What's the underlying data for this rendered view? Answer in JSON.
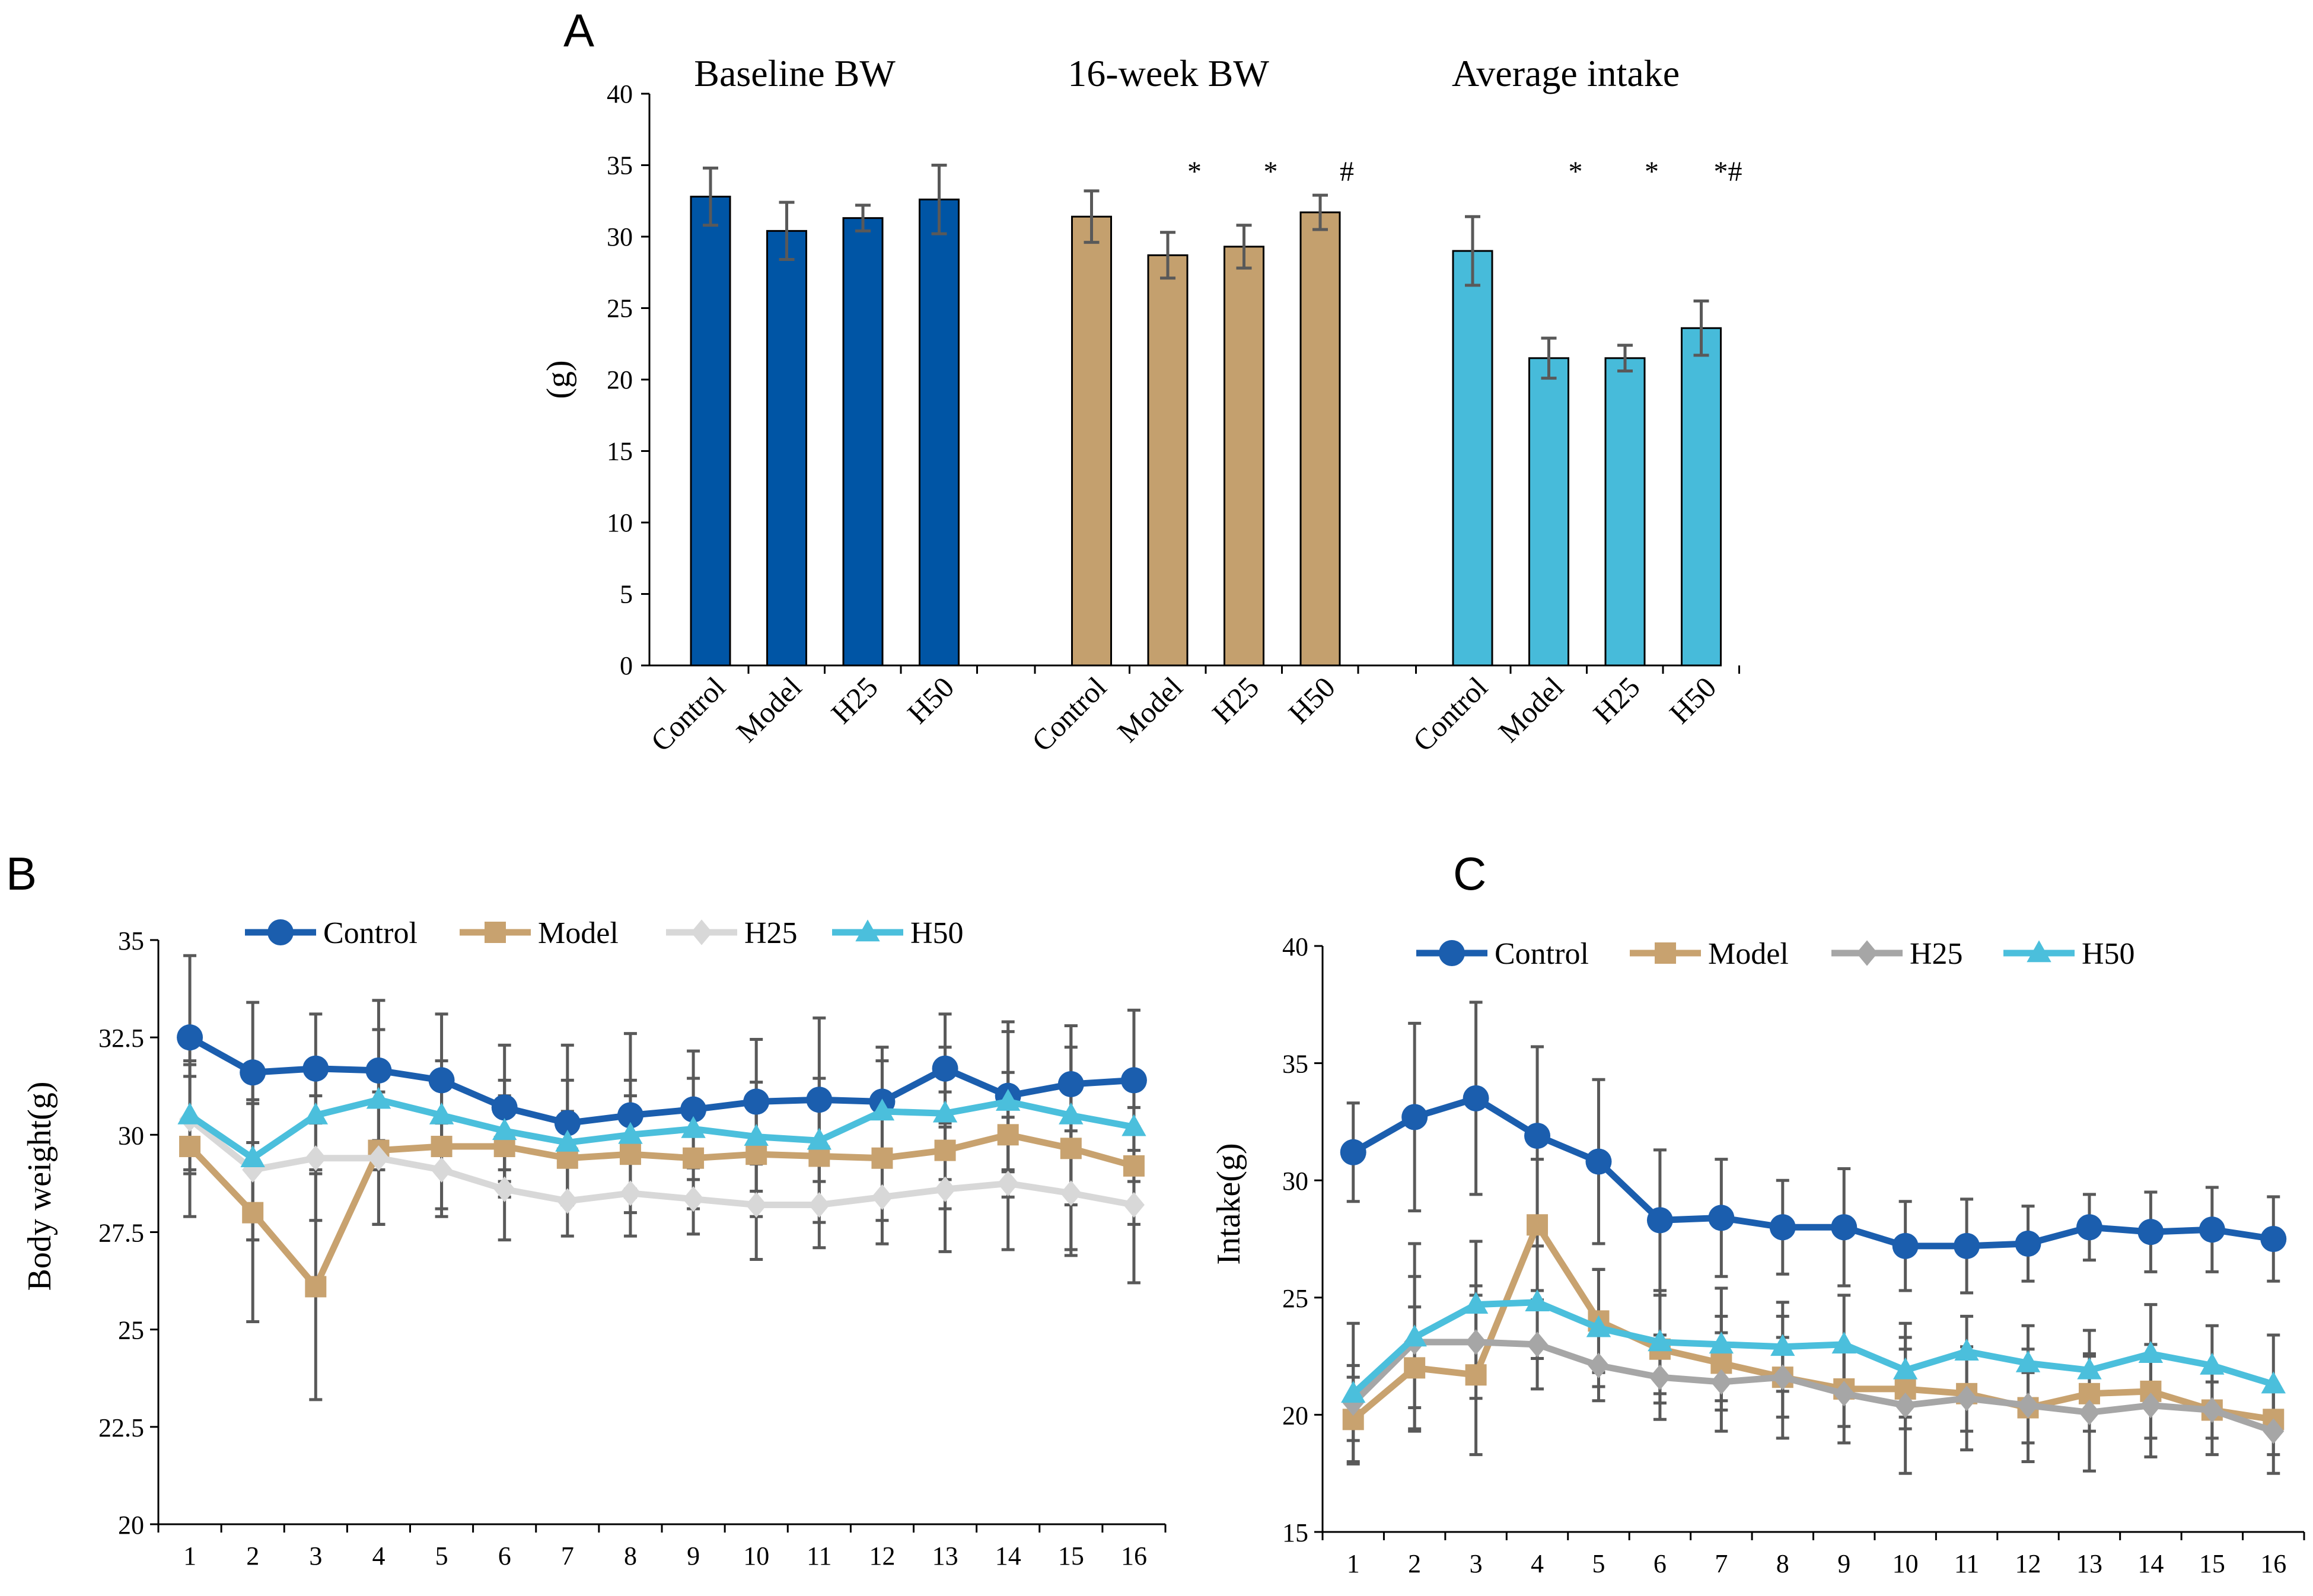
{
  "figure": {
    "background": "#ffffff"
  },
  "chart_data": [
    {
      "id": "A",
      "type": "bar",
      "panel_letter": "A",
      "ylabel": "(g)",
      "ylim": [
        0,
        40
      ],
      "yticks": [
        0,
        5,
        10,
        15,
        20,
        25,
        30,
        35,
        40
      ],
      "categories": [
        "Control",
        "Model",
        "H25",
        "H50"
      ],
      "groups": [
        {
          "title": "Baseline BW",
          "color": "#0055A5",
          "values": [
            32.8,
            30.4,
            31.3,
            32.6
          ],
          "errors": [
            2.0,
            2.0,
            0.9,
            2.4
          ],
          "significance": [
            "",
            "",
            "",
            ""
          ]
        },
        {
          "title": "16-week BW",
          "color": "#C4A06E",
          "values": [
            31.4,
            28.7,
            29.3,
            31.7
          ],
          "errors": [
            1.8,
            1.6,
            1.5,
            1.2
          ],
          "significance": [
            "",
            "*",
            "*",
            "#"
          ]
        },
        {
          "title": "Average intake",
          "color": "#47BBDA",
          "values": [
            29.0,
            21.5,
            21.5,
            23.6
          ],
          "errors": [
            2.4,
            1.4,
            0.9,
            1.9
          ],
          "significance": [
            "",
            "*",
            "*",
            "*#"
          ]
        }
      ]
    },
    {
      "id": "B",
      "type": "line",
      "panel_letter": "B",
      "ylabel": "Body weight(g)",
      "xlabel": "",
      "x": [
        1,
        2,
        3,
        4,
        5,
        6,
        7,
        8,
        9,
        10,
        11,
        12,
        13,
        14,
        15,
        16
      ],
      "ylim": [
        20,
        35
      ],
      "yticks": [
        20,
        22.5,
        25,
        27.5,
        30,
        32.5,
        35
      ],
      "legend_position": "top",
      "series": [
        {
          "name": "Control",
          "color": "#1B5EAE",
          "marker": "circle",
          "values": [
            32.5,
            31.6,
            31.7,
            31.65,
            31.4,
            30.7,
            30.3,
            30.5,
            30.65,
            30.85,
            30.9,
            30.85,
            31.7,
            31.0,
            31.3,
            31.4
          ],
          "errors": [
            2.1,
            1.8,
            1.4,
            1.8,
            1.7,
            1.6,
            2.0,
            2.1,
            1.5,
            1.6,
            2.1,
            1.4,
            1.4,
            1.9,
            1.5,
            1.8
          ]
        },
        {
          "name": "Model",
          "color": "#C8A26F",
          "marker": "square",
          "values": [
            29.7,
            28.0,
            26.1,
            29.6,
            29.7,
            29.7,
            29.4,
            29.5,
            29.4,
            29.5,
            29.45,
            29.4,
            29.6,
            30.0,
            29.65,
            29.2
          ],
          "errors": [
            1.8,
            2.8,
            2.9,
            1.9,
            1.6,
            1.3,
            1.2,
            1.5,
            1.3,
            1.6,
            1.7,
            1.6,
            1.5,
            1.6,
            2.6,
            1.5
          ]
        },
        {
          "name": "H25",
          "color": "#D8D8D8",
          "marker": "diamond",
          "values": [
            30.4,
            29.1,
            29.4,
            29.4,
            29.1,
            28.6,
            28.3,
            28.5,
            28.35,
            28.2,
            28.2,
            28.4,
            28.6,
            28.75,
            28.5,
            28.2
          ],
          "errors": [
            1.4,
            1.8,
            1.6,
            1.7,
            1.2,
            1.3,
            0.9,
            1.1,
            0.9,
            1.4,
            1.1,
            1.2,
            1.6,
            1.7,
            1.6,
            2.0
          ]
        },
        {
          "name": "H50",
          "color": "#4BBFDC",
          "marker": "triangle",
          "values": [
            30.5,
            29.4,
            30.5,
            30.9,
            30.5,
            30.1,
            29.8,
            30.0,
            30.15,
            29.95,
            29.85,
            30.6,
            30.55,
            30.85,
            30.5,
            30.2
          ],
          "errors": [
            1.4,
            2.1,
            1.4,
            1.8,
            1.4,
            1.3,
            1.6,
            1.4,
            1.3,
            1.4,
            1.6,
            1.3,
            1.7,
            1.8,
            2.3,
            1.4
          ]
        }
      ]
    },
    {
      "id": "C",
      "type": "line",
      "panel_letter": "C",
      "ylabel": "Intake(g)",
      "xlabel": "",
      "x": [
        1,
        2,
        3,
        4,
        5,
        6,
        7,
        8,
        9,
        10,
        11,
        12,
        13,
        14,
        15,
        16
      ],
      "ylim": [
        15,
        40
      ],
      "yticks": [
        15,
        20,
        25,
        30,
        35,
        40
      ],
      "legend_position": "top",
      "series": [
        {
          "name": "Control",
          "color": "#1B5EAE",
          "marker": "circle",
          "values": [
            31.2,
            32.7,
            33.5,
            31.9,
            30.8,
            28.3,
            28.4,
            28.0,
            28.0,
            27.2,
            27.2,
            27.3,
            28.0,
            27.8,
            27.9,
            27.5
          ],
          "errors": [
            2.1,
            4.0,
            4.1,
            3.8,
            3.5,
            3.0,
            2.5,
            2.0,
            2.5,
            1.9,
            2.0,
            1.6,
            1.4,
            1.7,
            1.8,
            1.8
          ]
        },
        {
          "name": "Model",
          "color": "#C8A26F",
          "marker": "square",
          "values": [
            19.8,
            22.0,
            21.7,
            28.1,
            24.0,
            22.8,
            22.2,
            21.6,
            21.1,
            21.1,
            20.9,
            20.3,
            20.9,
            21.0,
            20.2,
            19.8
          ],
          "errors": [
            1.8,
            2.6,
            3.4,
            2.8,
            2.2,
            2.3,
            2.0,
            1.7,
            1.6,
            1.7,
            1.6,
            1.5,
            1.6,
            2.0,
            1.2,
            1.5
          ]
        },
        {
          "name": "H25",
          "color": "#A6A6A6",
          "marker": "diamond",
          "values": [
            20.5,
            23.1,
            23.1,
            23.0,
            22.1,
            21.6,
            21.4,
            21.6,
            20.9,
            20.4,
            20.7,
            20.4,
            20.1,
            20.4,
            20.2,
            19.3
          ],
          "errors": [
            1.6,
            2.8,
            2.4,
            1.9,
            1.5,
            1.8,
            2.1,
            2.6,
            2.1,
            2.9,
            2.2,
            2.4,
            2.5,
            2.2,
            1.9,
            1.8
          ]
        },
        {
          "name": "H50",
          "color": "#4BBFDC",
          "marker": "triangle",
          "values": [
            20.9,
            23.3,
            24.7,
            24.8,
            23.7,
            23.1,
            23.0,
            22.9,
            23.0,
            21.9,
            22.7,
            22.2,
            21.9,
            22.6,
            22.1,
            21.3
          ],
          "errors": [
            3.0,
            4.0,
            2.7,
            2.4,
            2.5,
            2.2,
            2.4,
            1.9,
            2.1,
            2.0,
            1.5,
            1.6,
            1.7,
            2.1,
            1.7,
            2.1
          ]
        }
      ]
    }
  ]
}
